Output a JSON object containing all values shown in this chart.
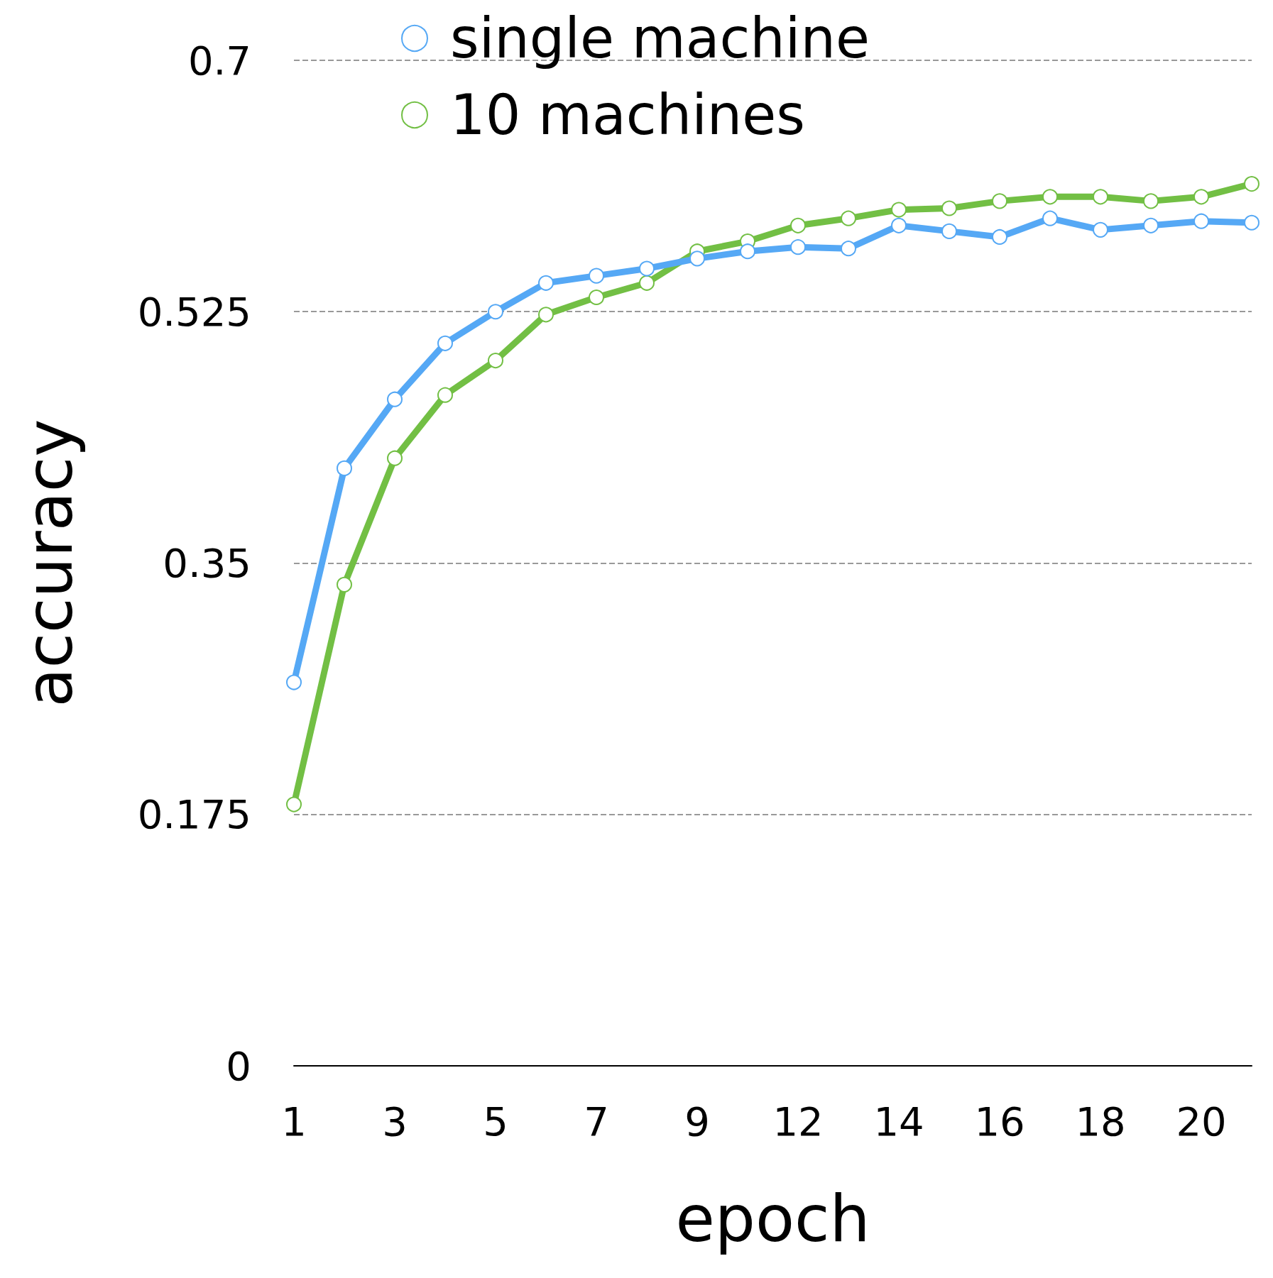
{
  "chart_data": {
    "type": "line",
    "xlabel": "epoch",
    "ylabel": "accuracy",
    "categories": [
      "1",
      null,
      "3",
      null,
      "5",
      null,
      "7",
      null,
      "9",
      null,
      "12",
      null,
      "14",
      null,
      "16",
      null,
      "18",
      null,
      "20",
      null
    ],
    "series": [
      {
        "name": "single machine",
        "color": "#55a8f5",
        "values": [
          0.267,
          0.416,
          0.464,
          0.503,
          0.525,
          0.545,
          0.55,
          0.555,
          0.562,
          0.567,
          0.57,
          0.569,
          0.585,
          0.581,
          0.577,
          0.59,
          0.582,
          0.585,
          0.588,
          0.587
        ]
      },
      {
        "name": "10 machines",
        "color": "#72bf44",
        "values": [
          0.182,
          0.335,
          0.423,
          0.467,
          0.491,
          0.523,
          0.535,
          0.545,
          0.567,
          0.574,
          0.585,
          0.59,
          0.596,
          0.597,
          0.602,
          0.605,
          0.605,
          0.602,
          0.605,
          0.614
        ]
      }
    ],
    "ylim": [
      0,
      0.7
    ],
    "yticks": [
      0,
      0.175,
      0.35,
      0.525,
      0.7
    ],
    "grid": "y",
    "legend": "top",
    "marker": "circle",
    "line_style": "solid"
  }
}
